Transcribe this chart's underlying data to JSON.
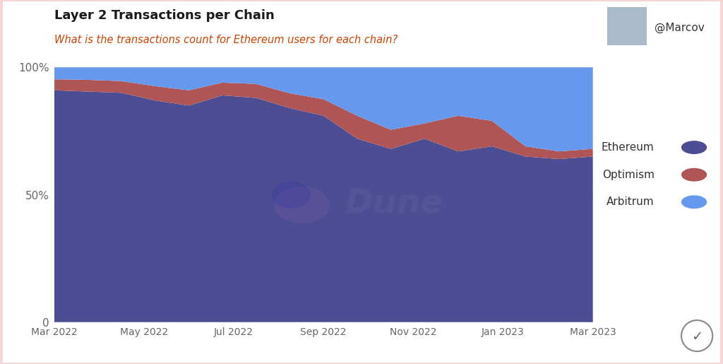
{
  "title": "Layer 2 Transactions per Chain",
  "subtitle": "What is the transactions count for Ethereum users for each chain?",
  "x_labels": [
    "Mar 2022",
    "May 2022",
    "Jul 2022",
    "Sep 2022",
    "Nov 2022",
    "Jan 2023",
    "Mar 2023"
  ],
  "colors": {
    "ethereum": "#4d4d94",
    "optimism": "#b05555",
    "arbitrum": "#6699ee",
    "background": "#ffffff",
    "border": "#f5d5d5",
    "grid": "#e8e8e8",
    "tick_label": "#666666",
    "title": "#1a1a1a",
    "subtitle": "#cc4400"
  },
  "ethereum_pct": [
    0.91,
    0.905,
    0.9,
    0.87,
    0.85,
    0.89,
    0.88,
    0.84,
    0.81,
    0.72,
    0.68,
    0.72,
    0.67,
    0.69,
    0.65,
    0.64,
    0.65
  ],
  "optimism_pct": [
    0.043,
    0.046,
    0.046,
    0.056,
    0.06,
    0.05,
    0.055,
    0.058,
    0.065,
    0.09,
    0.075,
    0.06,
    0.14,
    0.1,
    0.04,
    0.03,
    0.03
  ],
  "arbitrum_pct": [
    0.047,
    0.049,
    0.054,
    0.074,
    0.09,
    0.06,
    0.065,
    0.102,
    0.125,
    0.19,
    0.245,
    0.22,
    0.19,
    0.21,
    0.31,
    0.33,
    0.32
  ],
  "n_points": 17,
  "legend_items": [
    "Ethereum",
    "Optimism",
    "Arbitrum"
  ],
  "ytick_labels": [
    "0",
    "50%",
    "100%"
  ],
  "ytick_values": [
    0,
    0.5,
    1.0
  ],
  "watermark_text": "Dune",
  "watermark_color": "#7777aa",
  "watermark_alpha": 0.18,
  "dune_circle_color": "#8866aa",
  "dune_circle_alpha": 0.2
}
